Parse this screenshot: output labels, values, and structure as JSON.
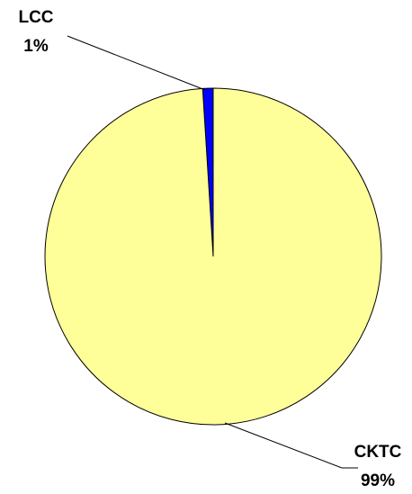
{
  "chart_data": {
    "type": "pie",
    "categories": [
      "LCC",
      "CKTC"
    ],
    "values": [
      1,
      99
    ],
    "value_labels": [
      "1%",
      "99%"
    ],
    "colors": [
      "#0000ff",
      "#ffff99"
    ]
  }
}
